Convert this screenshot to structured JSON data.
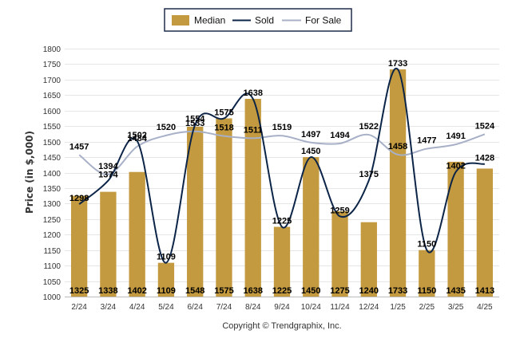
{
  "chart_data": {
    "type": "bar",
    "ylabel": "Price (in $,000)",
    "ylim": [
      1000,
      1800
    ],
    "yticks": [
      1000,
      1050,
      1100,
      1150,
      1200,
      1250,
      1300,
      1350,
      1400,
      1450,
      1500,
      1550,
      1600,
      1650,
      1700,
      1750,
      1800
    ],
    "categories": [
      "2/24",
      "3/24",
      "4/24",
      "5/24",
      "6/24",
      "7/24",
      "8/24",
      "9/24",
      "10/24",
      "11/24",
      "12/24",
      "1/25",
      "2/25",
      "3/25",
      "4/25"
    ],
    "series": [
      {
        "name": "Median",
        "type": "bar",
        "color": "#c39a3f",
        "values": [
          1325,
          1338,
          1402,
          1109,
          1548,
          1575,
          1638,
          1225,
          1450,
          1275,
          1240,
          1733,
          1150,
          1435,
          1413
        ]
      },
      {
        "name": "Sold",
        "type": "line",
        "color": "#0b2447",
        "values": [
          1298,
          1374,
          1502,
          1109,
          1554,
          1575,
          1638,
          1225,
          1450,
          1259,
          1375,
          1733,
          1150,
          1402,
          1428
        ]
      },
      {
        "name": "For Sale",
        "type": "line",
        "color": "#a7b0c7",
        "values": [
          1457,
          1394,
          1484,
          1520,
          1533,
          1518,
          1511,
          1519,
          1497,
          1494,
          1522,
          1458,
          1477,
          1491,
          1524
        ]
      }
    ],
    "legend_position": "top-center",
    "grid": true,
    "credit": "Copyright © Trendgraphix, Inc."
  }
}
